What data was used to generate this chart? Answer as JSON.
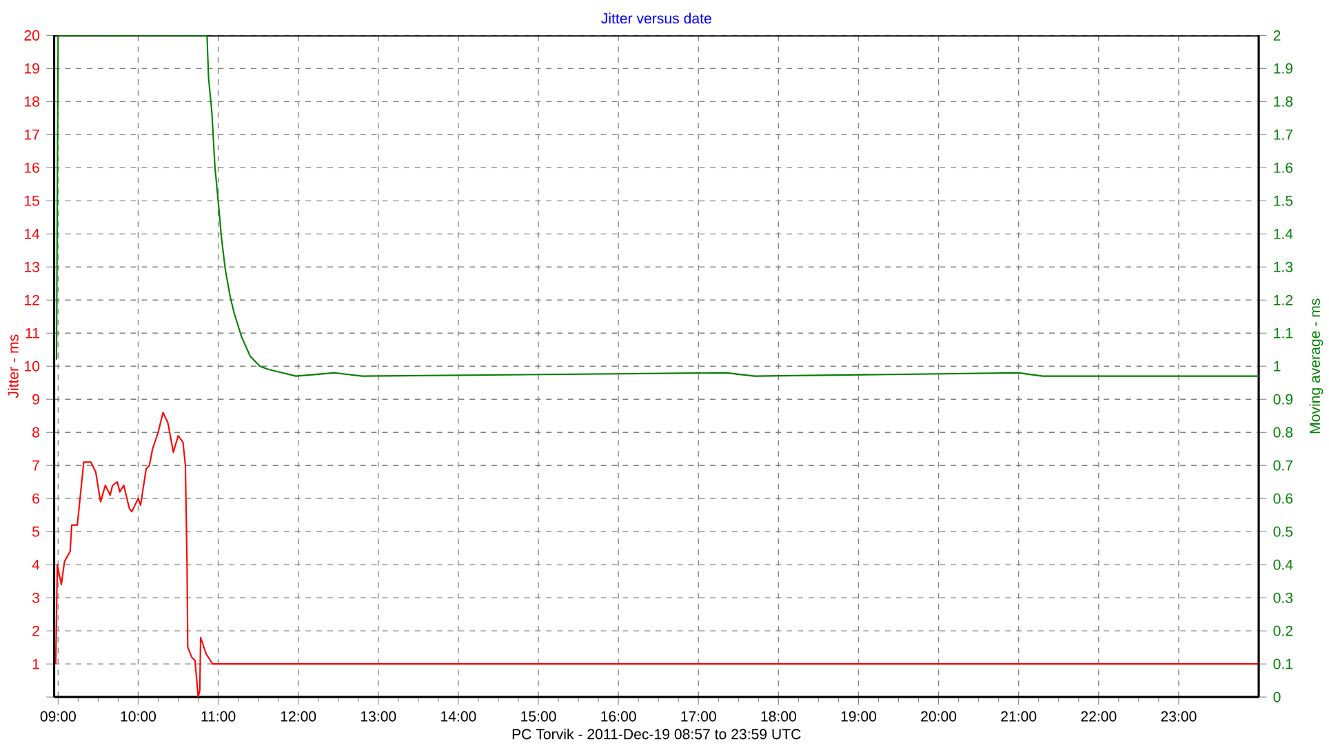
{
  "chart_data": {
    "type": "line",
    "title": "Jitter versus date",
    "xlabel": "PC Torvik  -  2011-Dec-19 08:57  to  23:59 UTC",
    "ylabel": "Jitter - ms",
    "y2label": "Moving average - ms",
    "xlim": [
      8.95,
      24
    ],
    "xticks": [
      {
        "value": 9,
        "label": "09:00"
      },
      {
        "value": 10,
        "label": "10:00"
      },
      {
        "value": 11,
        "label": "11:00"
      },
      {
        "value": 12,
        "label": "12:00"
      },
      {
        "value": 13,
        "label": "13:00"
      },
      {
        "value": 14,
        "label": "14:00"
      },
      {
        "value": 15,
        "label": "15:00"
      },
      {
        "value": 16,
        "label": "16:00"
      },
      {
        "value": 17,
        "label": "17:00"
      },
      {
        "value": 18,
        "label": "18:00"
      },
      {
        "value": 19,
        "label": "19:00"
      },
      {
        "value": 20,
        "label": "20:00"
      },
      {
        "value": 21,
        "label": "21:00"
      },
      {
        "value": 22,
        "label": "22:00"
      },
      {
        "value": 23,
        "label": "23:00"
      }
    ],
    "ylim": [
      0,
      20
    ],
    "yticks": [
      {
        "value": 0,
        "label": null
      },
      1,
      2,
      3,
      4,
      5,
      6,
      7,
      8,
      9,
      10,
      11,
      12,
      13,
      14,
      15,
      16,
      17,
      18,
      19,
      20
    ],
    "y2lim": [
      0,
      2
    ],
    "y2ticks": [
      0,
      0.1,
      0.2,
      0.3,
      0.4,
      0.5,
      0.6,
      0.7,
      0.8,
      0.9,
      1,
      1.1,
      1.2,
      1.3,
      1.4,
      1.5,
      1.6,
      1.7,
      1.8,
      1.9,
      2
    ],
    "grid": true,
    "marker": "none",
    "line_style": "solid",
    "series": [
      {
        "color": "#ff0000",
        "x": [
          8.97,
          8.99,
          9.04,
          9.08,
          9.15,
          9.17,
          9.24,
          9.32,
          9.38,
          9.41,
          9.47,
          9.53,
          9.59,
          9.65,
          9.68,
          9.74,
          9.77,
          9.82,
          9.89,
          9.92,
          10.0,
          10.03,
          10.1,
          10.14,
          10.18,
          10.25,
          10.31,
          10.37,
          10.44,
          10.5,
          10.56,
          10.59,
          10.61,
          10.62,
          10.67,
          10.71,
          10.75,
          10.77,
          10.78,
          10.85,
          10.93,
          11.05,
          24
        ],
        "values": [
          1.0,
          4.0,
          3.4,
          4.1,
          4.4,
          5.2,
          5.2,
          7.1,
          7.1,
          7.1,
          6.8,
          5.9,
          6.4,
          6.1,
          6.4,
          6.5,
          6.2,
          6.4,
          5.7,
          5.6,
          6.0,
          5.8,
          6.9,
          7.0,
          7.5,
          8.0,
          8.6,
          8.3,
          7.4,
          7.9,
          7.7,
          7.0,
          4.1,
          1.5,
          1.2,
          1.1,
          0.0,
          0.2,
          1.8,
          1.3,
          1.0,
          1.0,
          1.0
        ]
      },
      {
        "color": "#008000",
        "axis": "y2",
        "x": [
          8.98,
          9.0,
          10.86,
          10.88,
          10.92,
          10.96,
          11.0,
          11.04,
          11.09,
          11.15,
          11.2,
          11.29,
          11.4,
          11.52,
          11.63,
          11.8,
          11.97,
          12.45,
          12.8,
          17.35,
          17.7,
          21.0,
          21.3,
          24
        ],
        "values": [
          1.02,
          2.0,
          2.0,
          1.87,
          1.77,
          1.6,
          1.5,
          1.39,
          1.29,
          1.21,
          1.16,
          1.09,
          1.03,
          1.0,
          0.99,
          0.98,
          0.97,
          0.98,
          0.97,
          0.98,
          0.97,
          0.98,
          0.97,
          0.97
        ]
      }
    ]
  }
}
